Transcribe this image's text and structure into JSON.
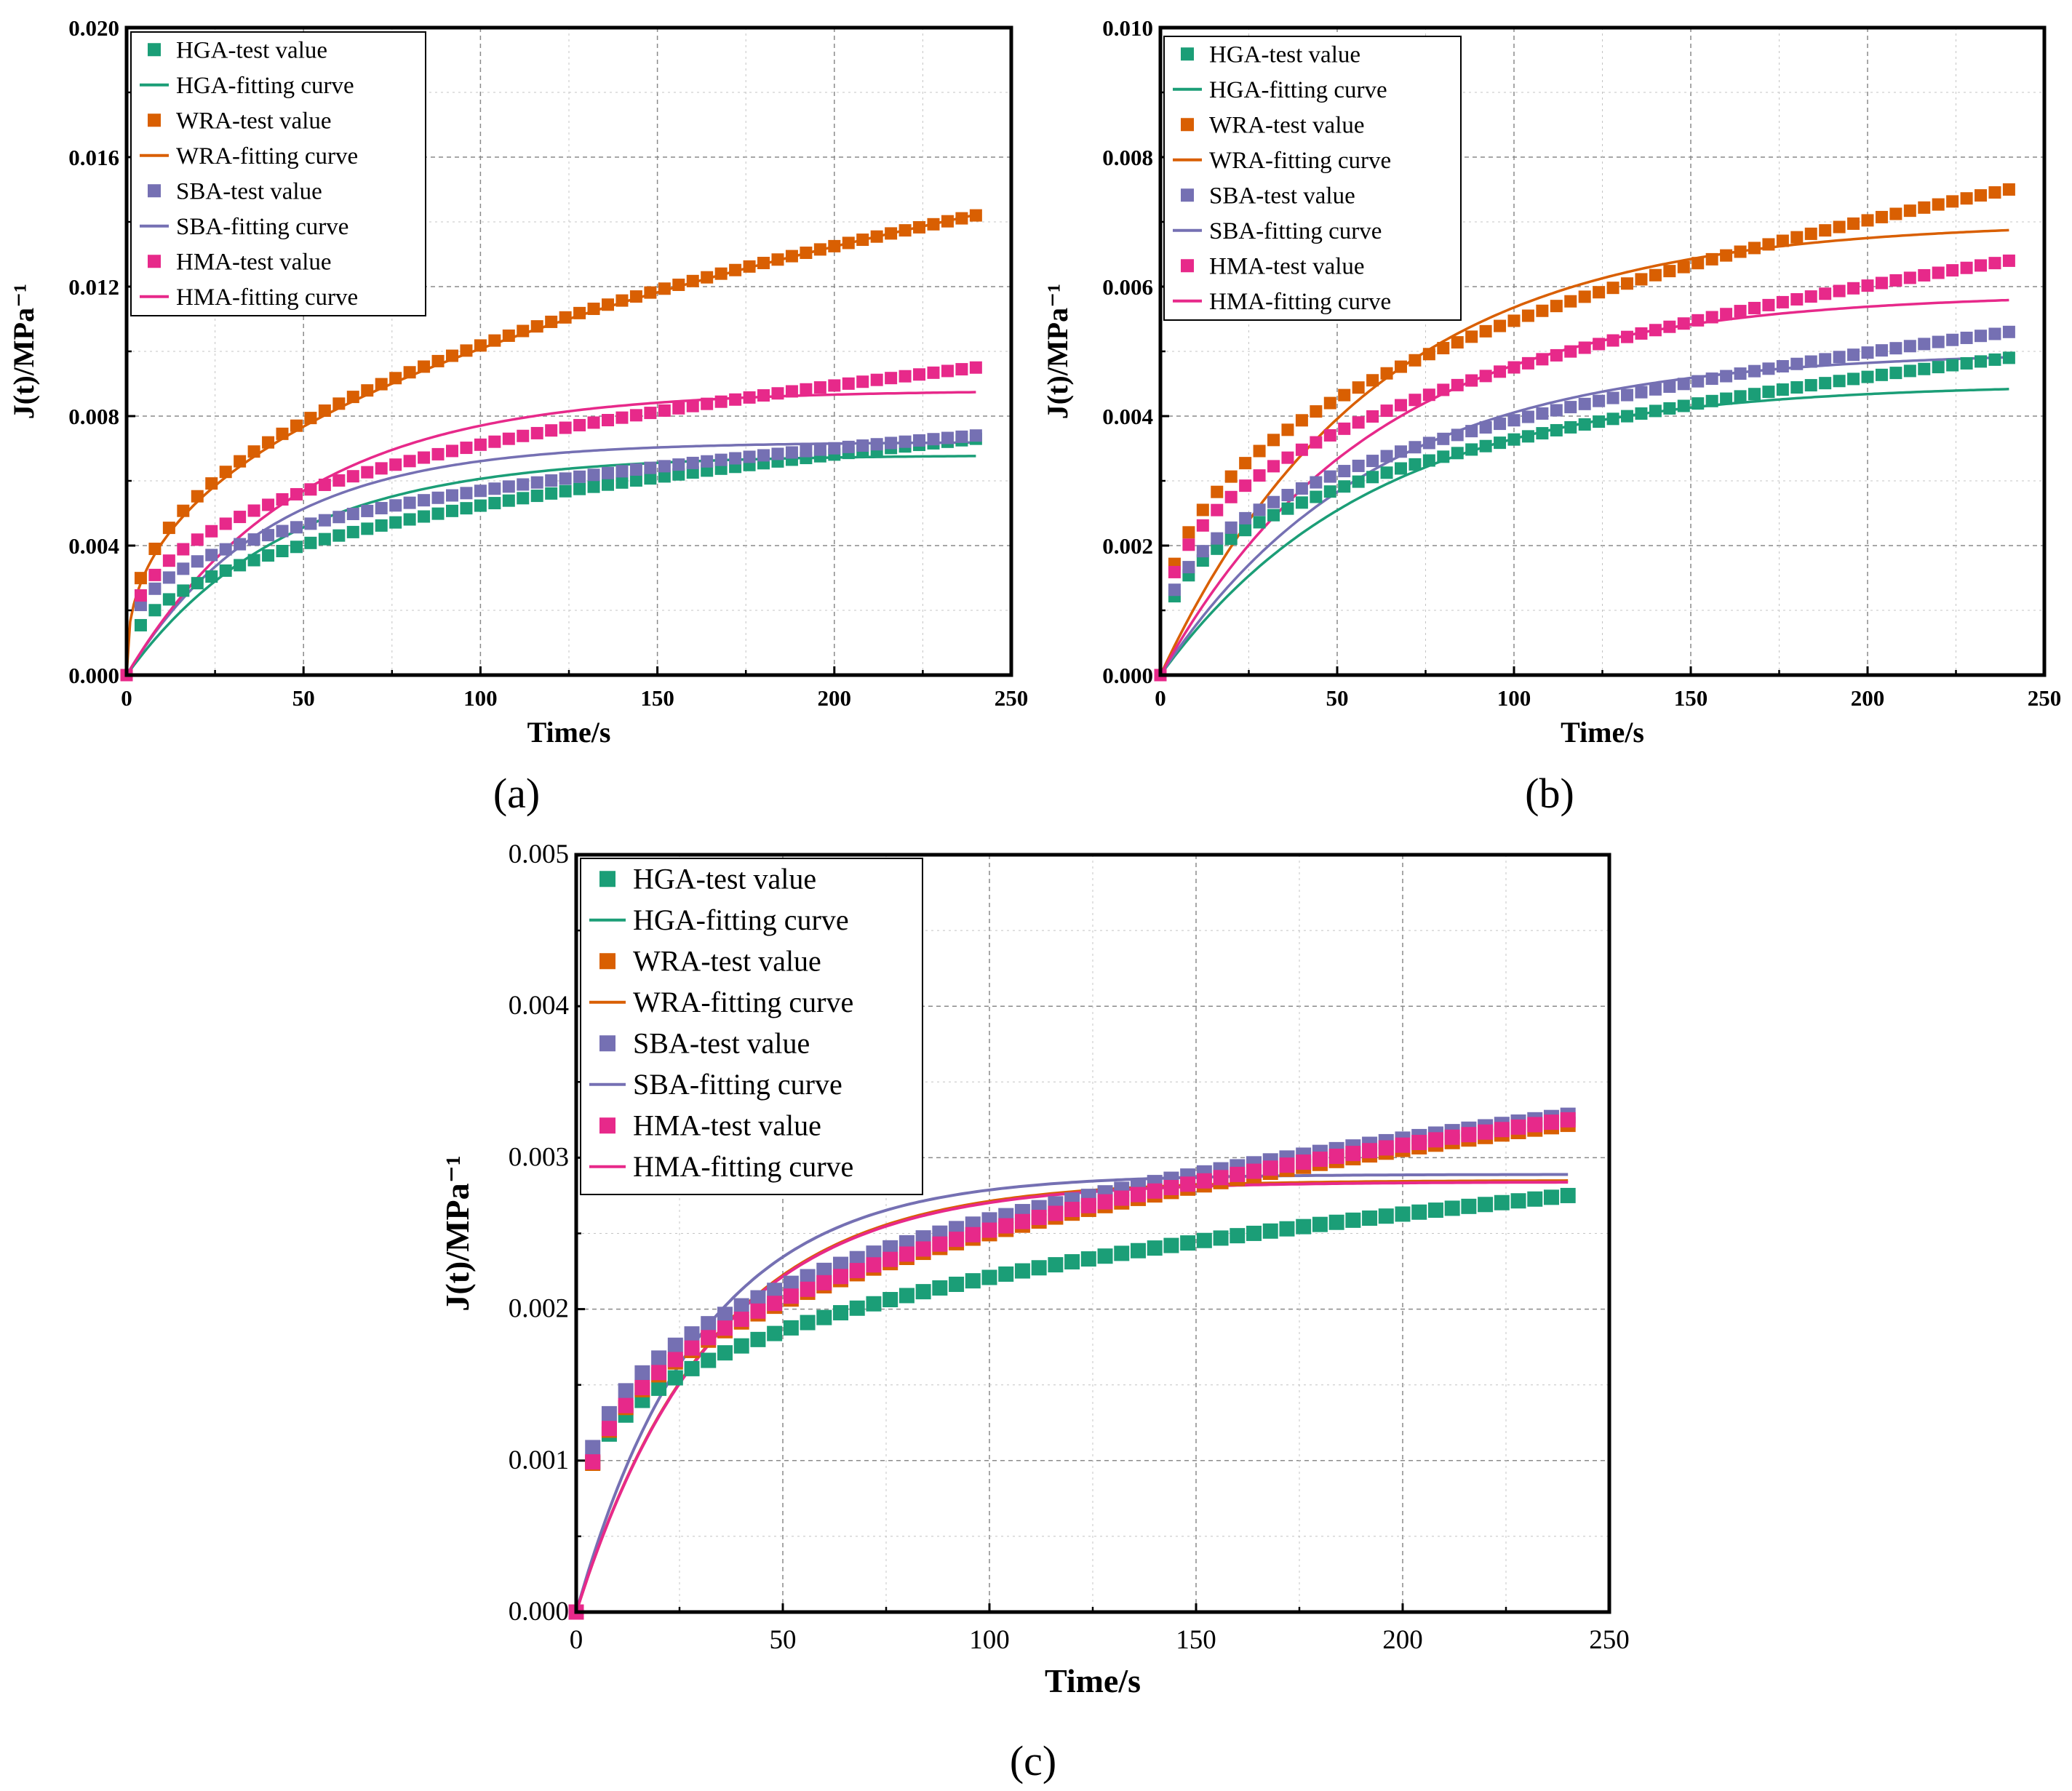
{
  "colors": {
    "HGA": "#1b9e77",
    "WRA": "#d95f02",
    "SBA": "#7570b3",
    "HMA": "#e7298a"
  },
  "chart_data": [
    {
      "panel": "(a)",
      "type": "scatter",
      "xlabel": "Time/s",
      "ylabel": "J(t)/MPa⁻¹",
      "xlim": [
        0,
        250
      ],
      "ylim": [
        0,
        0.02
      ],
      "x_ticks": [
        "0",
        "50",
        "100",
        "150",
        "200",
        "250"
      ],
      "y_ticks": [
        "0.000",
        "0.004",
        "0.008",
        "0.012",
        "0.016",
        "0.020"
      ],
      "grid": true,
      "legend": "top-left",
      "legend_entries": [
        "HGA-test value",
        "HGA-fitting curve",
        "WRA-test value",
        "WRA-fitting curve",
        "SBA-test value",
        "SBA-fitting curve",
        "HMA-test value",
        "HMA-fitting curve"
      ],
      "series": [
        {
          "name": "HGA-test value",
          "kind": "markers",
          "t0": 0.0,
          "n": 0.38,
          "C": 0.0008,
          "tmax": 240,
          "end": 0.0073
        },
        {
          "name": "HGA-fitting curve",
          "kind": "line",
          "model": "burgers",
          "Jinf": 0.0068,
          "tau": 45,
          "tmax": 240
        },
        {
          "name": "WRA-test value",
          "kind": "markers",
          "n": 0.38,
          "C": 0.0017,
          "tmax": 240,
          "end": 0.0142
        },
        {
          "name": "WRA-fitting curve",
          "kind": "line",
          "model": "power",
          "a": 0.00165,
          "b": 0.393,
          "tmax": 240
        },
        {
          "name": "SBA-test value",
          "kind": "markers",
          "n": 0.3,
          "C": 0.0014,
          "tmax": 240,
          "end": 0.0074
        },
        {
          "name": "SBA-fitting curve",
          "kind": "line",
          "model": "burgers",
          "Jinf": 0.0072,
          "tau": 40,
          "tmax": 240
        },
        {
          "name": "HMA-test value",
          "kind": "markers",
          "n": 0.33,
          "C": 0.0015,
          "tmax": 240,
          "end": 0.0095
        },
        {
          "name": "HMA-fitting curve",
          "kind": "line",
          "model": "burgers",
          "Jinf": 0.0088,
          "tau": 48,
          "tmax": 240
        }
      ]
    },
    {
      "panel": "(b)",
      "type": "scatter",
      "xlabel": "Time/s",
      "ylabel": "J(t)/MPa⁻¹",
      "xlim": [
        0,
        250
      ],
      "ylim": [
        0,
        0.01
      ],
      "x_ticks": [
        "0",
        "50",
        "100",
        "150",
        "200",
        "250"
      ],
      "y_ticks": [
        "0.000",
        "0.002",
        "0.004",
        "0.006",
        "0.008",
        "0.010"
      ],
      "grid": true,
      "legend": "top-left",
      "legend_entries": [
        "HGA-test value",
        "HGA-fitting curve",
        "WRA-test value",
        "WRA-fitting curve",
        "SBA-test value",
        "SBA-fitting curve",
        "HMA-test value",
        "HMA-fitting curve"
      ],
      "series": [
        {
          "name": "HGA-test value",
          "kind": "markers",
          "n": 0.34,
          "C": 0.00075,
          "tmax": 240,
          "end": 0.0049
        },
        {
          "name": "HGA-fitting curve",
          "kind": "line",
          "model": "burgers",
          "Jinf": 0.0045,
          "tau": 60,
          "tmax": 240
        },
        {
          "name": "WRA-test value",
          "kind": "markers",
          "n": 0.36,
          "C": 0.00105,
          "tmax": 240,
          "end": 0.0075
        },
        {
          "name": "WRA-fitting curve",
          "kind": "line",
          "model": "burgers",
          "Jinf": 0.007,
          "tau": 60,
          "tmax": 240
        },
        {
          "name": "SBA-test value",
          "kind": "markers",
          "n": 0.34,
          "C": 0.00082,
          "tmax": 240,
          "end": 0.0053
        },
        {
          "name": "SBA-fitting curve",
          "kind": "line",
          "model": "burgers",
          "Jinf": 0.005,
          "tau": 60,
          "tmax": 240
        },
        {
          "name": "HMA-test value",
          "kind": "markers",
          "n": 0.34,
          "C": 0.00095,
          "tmax": 240,
          "end": 0.0064
        },
        {
          "name": "HMA-fitting curve",
          "kind": "line",
          "model": "burgers",
          "Jinf": 0.0059,
          "tau": 60,
          "tmax": 240
        }
      ]
    },
    {
      "panel": "(c)",
      "type": "scatter",
      "xlabel": "Time/s",
      "ylabel": "J(t)/MPa⁻¹",
      "xlim": [
        0,
        250
      ],
      "ylim": [
        0,
        0.005
      ],
      "x_ticks": [
        "0",
        "50",
        "100",
        "150",
        "200",
        "250"
      ],
      "y_ticks": [
        "0.000",
        "0.001",
        "0.002",
        "0.003",
        "0.004",
        "0.005"
      ],
      "grid": true,
      "legend": "top-left",
      "legend_entries": [
        "HGA-test value",
        "HGA-fitting curve",
        "WRA-test value",
        "WRA-fitting curve",
        "SBA-test value",
        "SBA-fitting curve",
        "HMA-test value",
        "HMA-fitting curve"
      ],
      "series": [
        {
          "name": "HGA-test value",
          "kind": "markers",
          "n": 0.25,
          "C": 0.00076,
          "tmax": 240,
          "end": 0.00275
        },
        {
          "name": "HGA-fitting curve",
          "kind": "line",
          "model": "zero",
          "tmax": 240
        },
        {
          "name": "WRA-test value",
          "kind": "markers",
          "n": 0.29,
          "C": 0.00066,
          "tmax": 240,
          "end": 0.00322
        },
        {
          "name": "WRA-fitting curve",
          "kind": "line",
          "model": "burgers",
          "Jinf": 0.00285,
          "tau": 33,
          "tmax": 240
        },
        {
          "name": "SBA-test value",
          "kind": "markers",
          "n": 0.27,
          "C": 0.00075,
          "tmax": 240,
          "end": 0.00328
        },
        {
          "name": "SBA-fitting curve",
          "kind": "line",
          "model": "burgers",
          "Jinf": 0.00289,
          "tau": 30,
          "tmax": 240
        },
        {
          "name": "HMA-test value",
          "kind": "markers",
          "n": 0.29,
          "C": 0.00066,
          "tmax": 240,
          "end": 0.00325
        },
        {
          "name": "HMA-fitting curve",
          "kind": "line",
          "model": "burgers",
          "Jinf": 0.00284,
          "tau": 33,
          "tmax": 240
        }
      ]
    }
  ]
}
